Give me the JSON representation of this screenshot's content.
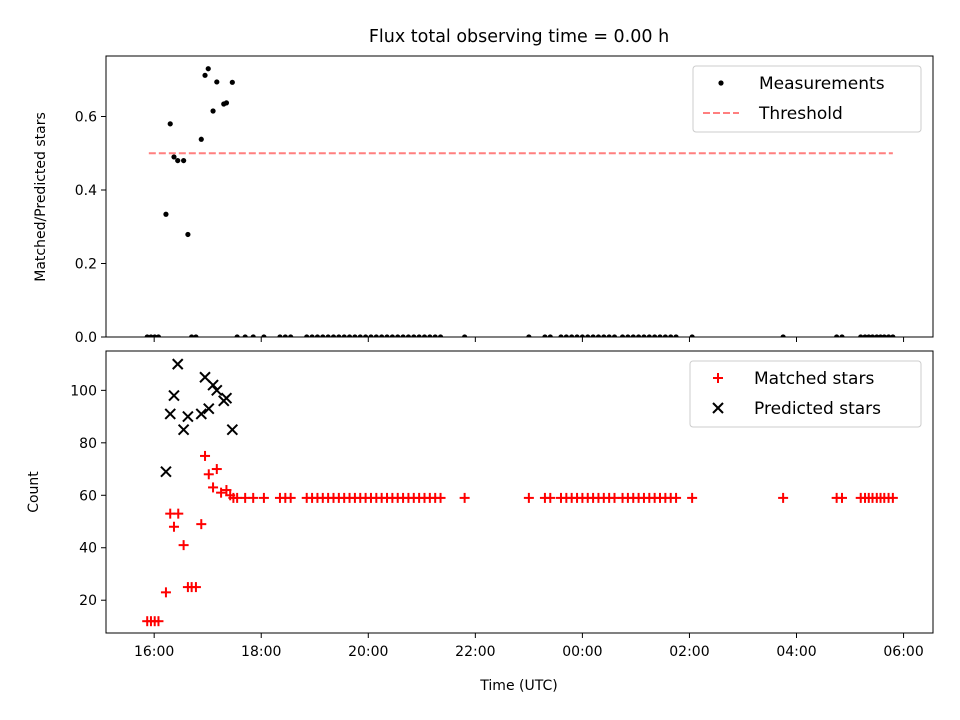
{
  "chart_data": {
    "title": "Flux total observing time = 0.00 h",
    "xlabel": "Time (UTC)",
    "x_ticks": [
      "16:00",
      "18:00",
      "20:00",
      "22:00",
      "00:00",
      "02:00",
      "04:00",
      "06:00"
    ],
    "x_tick_hours": [
      16,
      18,
      20,
      22,
      24,
      26,
      28,
      30
    ],
    "xlim": [
      15.1,
      30.55
    ],
    "panels": [
      {
        "type": "scatter",
        "ylabel": "Matched/Predicted stars",
        "ylim": [
          0,
          0.7646
        ],
        "y_ticks": [
          0.0,
          0.2,
          0.4,
          0.6
        ],
        "y_tick_labels": [
          "0.0",
          "0.2",
          "0.4",
          "0.6"
        ],
        "legend": [
          {
            "label": "Measurements",
            "marker": "dot",
            "color": "#000000"
          },
          {
            "label": "Threshold",
            "marker": "dash",
            "color": "#ff7f7f"
          }
        ],
        "threshold": {
          "y": 0.5,
          "x": [
            15.9,
            29.8
          ],
          "color": "#ff7f7f"
        },
        "series": [
          {
            "name": "Measurements",
            "color": "#000000",
            "points": [
              [
                15.87,
                0
              ],
              [
                15.94,
                0
              ],
              [
                16.01,
                0
              ],
              [
                16.08,
                0
              ],
              [
                16.22,
                0.334
              ],
              [
                16.3,
                0.58
              ],
              [
                16.37,
                0.49
              ],
              [
                16.44,
                0.48
              ],
              [
                16.55,
                0.48
              ],
              [
                16.63,
                0.279
              ],
              [
                16.88,
                0.538
              ],
              [
                16.95,
                0.712
              ],
              [
                17.01,
                0.73
              ],
              [
                17.1,
                0.615
              ],
              [
                17.17,
                0.694
              ],
              [
                17.3,
                0.634
              ],
              [
                17.35,
                0.637
              ],
              [
                17.46,
                0.693
              ],
              [
                16.7,
                0
              ],
              [
                16.78,
                0
              ],
              [
                17.55,
                0
              ],
              [
                17.7,
                0
              ],
              [
                17.85,
                0
              ],
              [
                18.05,
                0
              ],
              [
                18.35,
                0
              ],
              [
                18.45,
                0
              ],
              [
                18.55,
                0
              ],
              [
                18.85,
                0
              ],
              [
                18.95,
                0
              ],
              [
                19.05,
                0
              ],
              [
                19.15,
                0
              ],
              [
                19.25,
                0
              ],
              [
                19.35,
                0
              ],
              [
                19.45,
                0
              ],
              [
                19.55,
                0
              ],
              [
                19.65,
                0
              ],
              [
                19.75,
                0
              ],
              [
                19.85,
                0
              ],
              [
                19.95,
                0
              ],
              [
                20.05,
                0
              ],
              [
                20.15,
                0
              ],
              [
                20.25,
                0
              ],
              [
                20.35,
                0
              ],
              [
                20.45,
                0
              ],
              [
                20.55,
                0
              ],
              [
                20.65,
                0
              ],
              [
                20.75,
                0
              ],
              [
                20.85,
                0
              ],
              [
                20.95,
                0
              ],
              [
                21.05,
                0
              ],
              [
                21.15,
                0
              ],
              [
                21.25,
                0
              ],
              [
                21.35,
                0
              ],
              [
                21.8,
                0
              ],
              [
                23.0,
                0
              ],
              [
                23.3,
                0
              ],
              [
                23.4,
                0
              ],
              [
                23.6,
                0
              ],
              [
                23.7,
                0
              ],
              [
                23.8,
                0
              ],
              [
                23.9,
                0
              ],
              [
                24.0,
                0
              ],
              [
                24.1,
                0
              ],
              [
                24.2,
                0
              ],
              [
                24.3,
                0
              ],
              [
                24.4,
                0
              ],
              [
                24.5,
                0
              ],
              [
                24.6,
                0
              ],
              [
                24.75,
                0
              ],
              [
                24.85,
                0
              ],
              [
                24.95,
                0
              ],
              [
                25.05,
                0
              ],
              [
                25.15,
                0
              ],
              [
                25.25,
                0
              ],
              [
                25.35,
                0
              ],
              [
                25.45,
                0
              ],
              [
                25.55,
                0
              ],
              [
                25.65,
                0
              ],
              [
                25.75,
                0
              ],
              [
                26.05,
                0
              ],
              [
                27.75,
                0
              ],
              [
                28.75,
                0
              ],
              [
                28.85,
                0
              ],
              [
                29.2,
                0
              ],
              [
                29.28,
                0
              ],
              [
                29.35,
                0
              ],
              [
                29.42,
                0
              ],
              [
                29.5,
                0
              ],
              [
                29.57,
                0
              ],
              [
                29.64,
                0
              ],
              [
                29.72,
                0
              ],
              [
                29.8,
                0
              ]
            ]
          }
        ]
      },
      {
        "type": "scatter",
        "ylabel": "Count",
        "ylim": [
          7.5,
          115
        ],
        "y_ticks": [
          20,
          40,
          60,
          80,
          100
        ],
        "y_tick_labels": [
          "20",
          "40",
          "60",
          "80",
          "100"
        ],
        "legend": [
          {
            "label": "Matched stars",
            "marker": "plus",
            "color": "#ff0000"
          },
          {
            "label": "Predicted stars",
            "marker": "x",
            "color": "#000000"
          }
        ],
        "series": [
          {
            "name": "Matched stars",
            "marker": "plus",
            "color": "#ff0000",
            "points": [
              [
                15.87,
                12
              ],
              [
                15.94,
                12
              ],
              [
                16.01,
                12
              ],
              [
                16.08,
                12
              ],
              [
                16.22,
                23
              ],
              [
                16.3,
                53
              ],
              [
                16.37,
                48
              ],
              [
                16.45,
                53
              ],
              [
                16.55,
                41
              ],
              [
                16.63,
                25
              ],
              [
                16.7,
                25
              ],
              [
                16.78,
                25
              ],
              [
                16.88,
                49
              ],
              [
                16.95,
                75
              ],
              [
                17.02,
                68
              ],
              [
                17.1,
                63
              ],
              [
                17.17,
                70
              ],
              [
                17.25,
                61
              ],
              [
                17.35,
                62
              ],
              [
                17.42,
                60
              ],
              [
                17.48,
                59
              ],
              [
                17.55,
                59
              ],
              [
                17.7,
                59
              ],
              [
                17.85,
                59
              ],
              [
                18.05,
                59
              ],
              [
                18.35,
                59
              ],
              [
                18.45,
                59
              ],
              [
                18.55,
                59
              ],
              [
                18.85,
                59
              ],
              [
                18.95,
                59
              ],
              [
                19.05,
                59
              ],
              [
                19.15,
                59
              ],
              [
                19.25,
                59
              ],
              [
                19.35,
                59
              ],
              [
                19.45,
                59
              ],
              [
                19.55,
                59
              ],
              [
                19.65,
                59
              ],
              [
                19.75,
                59
              ],
              [
                19.85,
                59
              ],
              [
                19.95,
                59
              ],
              [
                20.05,
                59
              ],
              [
                20.15,
                59
              ],
              [
                20.25,
                59
              ],
              [
                20.35,
                59
              ],
              [
                20.45,
                59
              ],
              [
                20.55,
                59
              ],
              [
                20.65,
                59
              ],
              [
                20.75,
                59
              ],
              [
                20.85,
                59
              ],
              [
                20.95,
                59
              ],
              [
                21.05,
                59
              ],
              [
                21.15,
                59
              ],
              [
                21.25,
                59
              ],
              [
                21.35,
                59
              ],
              [
                21.8,
                59
              ],
              [
                23.0,
                59
              ],
              [
                23.3,
                59
              ],
              [
                23.4,
                59
              ],
              [
                23.6,
                59
              ],
              [
                23.7,
                59
              ],
              [
                23.8,
                59
              ],
              [
                23.9,
                59
              ],
              [
                24.0,
                59
              ],
              [
                24.1,
                59
              ],
              [
                24.2,
                59
              ],
              [
                24.3,
                59
              ],
              [
                24.4,
                59
              ],
              [
                24.5,
                59
              ],
              [
                24.6,
                59
              ],
              [
                24.75,
                59
              ],
              [
                24.85,
                59
              ],
              [
                24.95,
                59
              ],
              [
                25.05,
                59
              ],
              [
                25.15,
                59
              ],
              [
                25.25,
                59
              ],
              [
                25.35,
                59
              ],
              [
                25.45,
                59
              ],
              [
                25.55,
                59
              ],
              [
                25.65,
                59
              ],
              [
                25.75,
                59
              ],
              [
                26.05,
                59
              ],
              [
                27.75,
                59
              ],
              [
                28.75,
                59
              ],
              [
                28.85,
                59
              ],
              [
                29.2,
                59
              ],
              [
                29.28,
                59
              ],
              [
                29.35,
                59
              ],
              [
                29.42,
                59
              ],
              [
                29.5,
                59
              ],
              [
                29.57,
                59
              ],
              [
                29.64,
                59
              ],
              [
                29.72,
                59
              ],
              [
                29.8,
                59
              ]
            ]
          },
          {
            "name": "Predicted stars",
            "marker": "x",
            "color": "#000000",
            "points": [
              [
                16.22,
                69
              ],
              [
                16.3,
                91
              ],
              [
                16.37,
                98
              ],
              [
                16.44,
                110
              ],
              [
                16.55,
                85
              ],
              [
                16.63,
                90
              ],
              [
                16.88,
                91
              ],
              [
                16.95,
                105
              ],
              [
                17.02,
                93
              ],
              [
                17.1,
                102
              ],
              [
                17.17,
                100
              ],
              [
                17.3,
                96
              ],
              [
                17.35,
                97
              ],
              [
                17.46,
                85
              ]
            ]
          }
        ]
      }
    ]
  }
}
